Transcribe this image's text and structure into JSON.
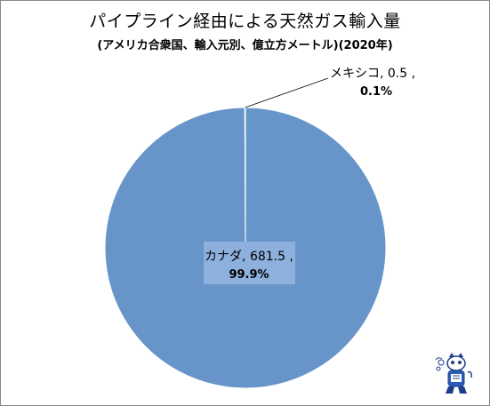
{
  "title": "パイプライン経由による天然ガス輸入量",
  "subtitle": "(アメリカ合衆国、輸入元別、億立方メートル)(2020年)",
  "chart_data": {
    "type": "pie",
    "title": "パイプライン経由による天然ガス輸入量",
    "subtitle": "(アメリカ合衆国、輸入元別、億立方メートル)(2020年)",
    "slices": [
      {
        "label": "カナダ",
        "value": 681.5,
        "percent": "99.9%",
        "color": "#6795c9"
      },
      {
        "label": "メキシコ",
        "value": 0.5,
        "percent": "0.1%",
        "color": "#c0504d"
      }
    ],
    "data_labels": [
      {
        "line1": "カナダ, 681.5 ,",
        "line2": "99.9%"
      },
      {
        "line1": "メキシコ, 0.5 ,",
        "line2": "0.1%"
      }
    ],
    "legend": "none"
  },
  "colors": {
    "pie_fill": "#6795c9",
    "pie_edge": "#ffffff",
    "label_box": "#8eb0dd",
    "leader_line": "#000000"
  }
}
